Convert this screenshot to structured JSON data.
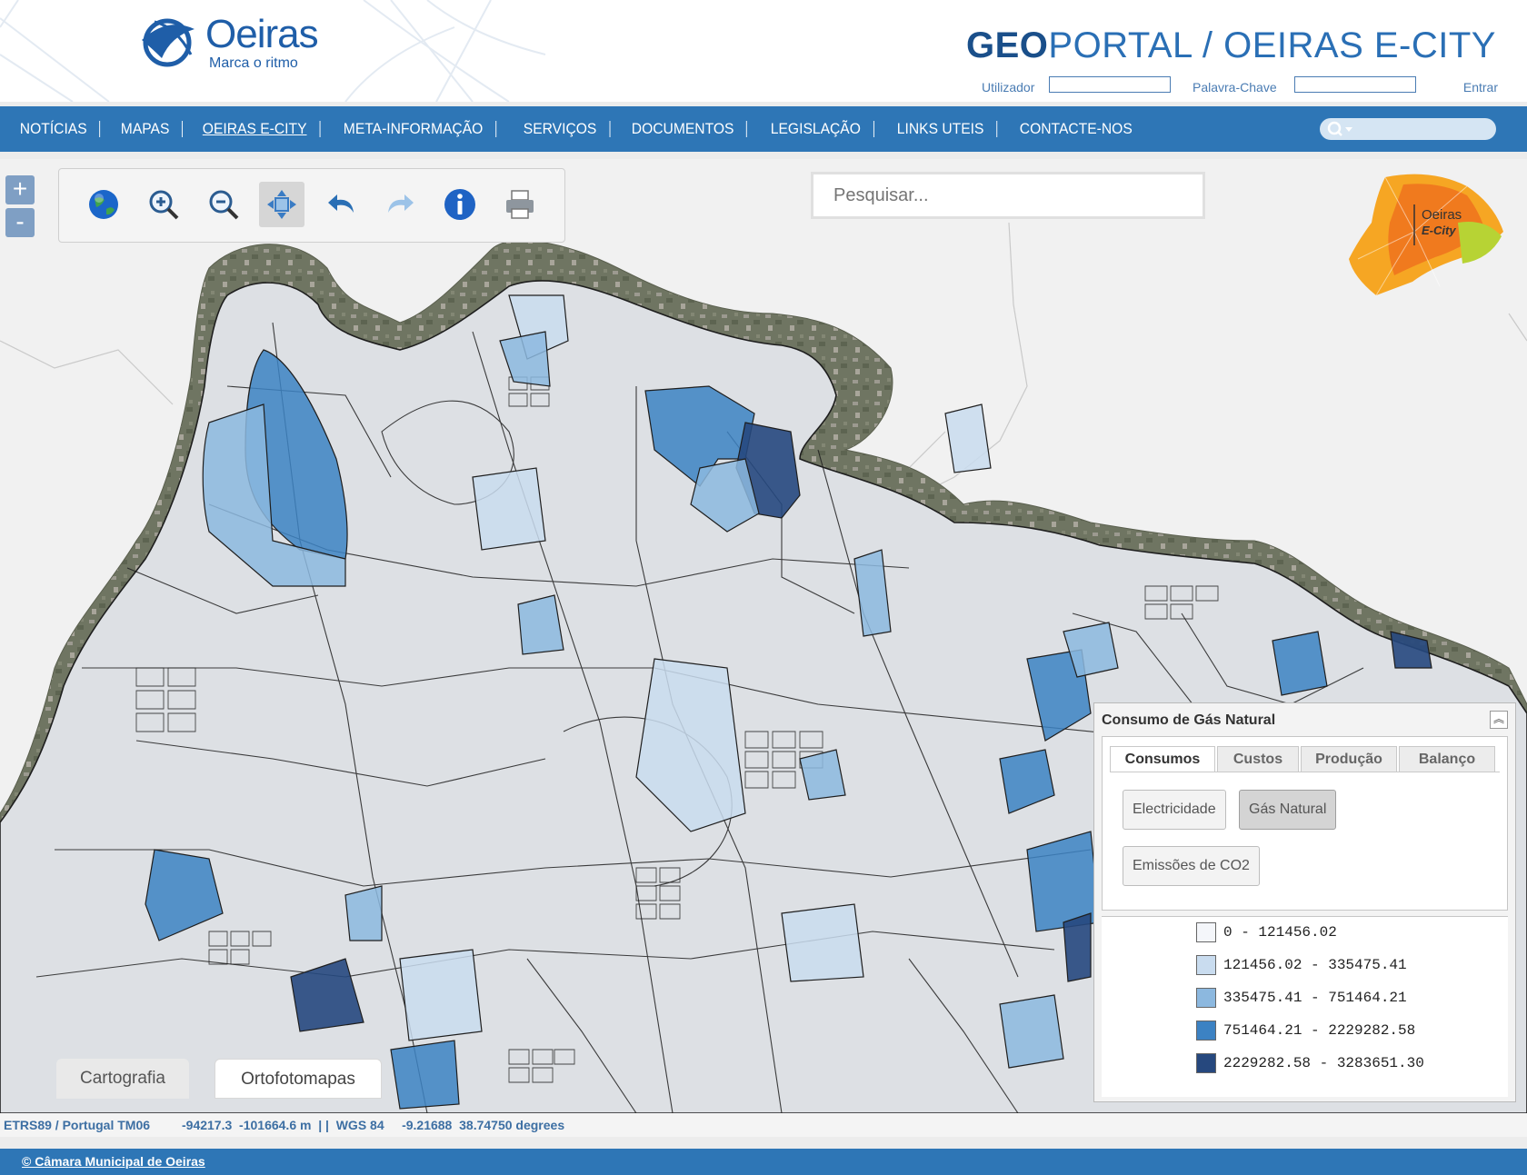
{
  "header": {
    "logo_name": "Oeiras",
    "logo_slogan": "Marca o ritmo",
    "title_bold": "GEO",
    "title_rest": "PORTAL / OEIRAS E-CITY",
    "user_label": "Utilizador",
    "password_label": "Palavra-Chave",
    "enter_label": "Entrar"
  },
  "nav": {
    "items": [
      "NOTÍCIAS",
      "MAPAS",
      "OEIRAS E-CITY",
      "META-INFORMAÇÃO",
      "SERVIÇOS",
      "DOCUMENTOS",
      "LEGISLAÇÃO",
      "LINKS UTEIS",
      "CONTACTE-NOS"
    ],
    "active": "OEIRAS E-CITY"
  },
  "map": {
    "zoom_in": "+",
    "zoom_out": "-",
    "tools": [
      "globe-icon",
      "zoom-in-icon",
      "zoom-out-icon",
      "pan-icon",
      "undo-icon",
      "redo-icon",
      "info-icon",
      "print-icon"
    ],
    "active_tool": "pan-icon",
    "search_placeholder": "Pesquisar...",
    "ecity_logo": {
      "line1": "Oeiras",
      "line2": "E-City"
    },
    "base_layers": {
      "cartografia": "Cartografia",
      "ortofotomapas": "Ortofotomapas"
    }
  },
  "legend": {
    "title": "Consumo de Gás Natural",
    "tabs": [
      "Consumos",
      "Custos",
      "Produção",
      "Balanço"
    ],
    "active_tab": "Consumos",
    "buttons": [
      "Electricidade",
      "Gás Natural",
      "Emissões de CO2"
    ],
    "active_button": "Gás Natural",
    "classes": [
      {
        "label": "0 - 121456.02",
        "color": "#f4f6fa"
      },
      {
        "label": "121456.02 - 335475.41",
        "color": "#c9dcef"
      },
      {
        "label": "335475.41 - 751464.21",
        "color": "#8cb8df"
      },
      {
        "label": "751464.21 - 2229282.58",
        "color": "#3c82c3"
      },
      {
        "label": "2229282.58 - 3283651.30",
        "color": "#26487e"
      }
    ]
  },
  "status": {
    "projection": "ETRS89 / Portugal TM06",
    "coords": "-94217.3  -101664.6 m  | |  WGS 84     -9.21688  38.74750 degrees"
  },
  "footer": {
    "copyright": "© Câmara Municipal de Oeiras"
  }
}
